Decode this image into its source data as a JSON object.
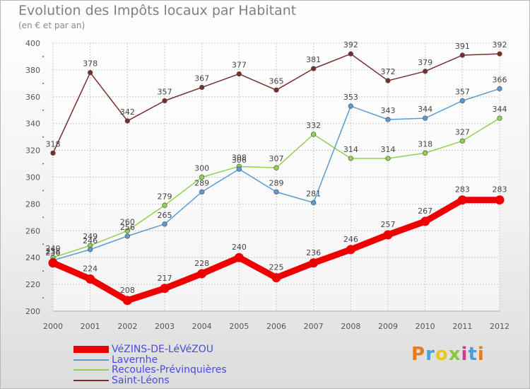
{
  "header": {
    "title": "Evolution des Impôts locaux par Habitant",
    "subtitle": "(en € et par an)"
  },
  "logo": {
    "text": "Proxiti",
    "colors": [
      "#e87b1e",
      "#4aa0d8",
      "#e8c81e",
      "#8cc63f",
      "#d23a8c",
      "#4aa0d8",
      "#e87b1e"
    ]
  },
  "chart_data": {
    "type": "line",
    "x": [
      2000,
      2001,
      2002,
      2003,
      2004,
      2005,
      2006,
      2007,
      2008,
      2009,
      2010,
      2011,
      2012
    ],
    "ylim": [
      200,
      400
    ],
    "yticks": [
      200,
      220,
      240,
      260,
      280,
      300,
      320,
      340,
      360,
      380,
      400
    ],
    "grid": true,
    "legend_position": "bottom-left",
    "series": [
      {
        "name": "VéZINS-DE-LéVéZOU",
        "color": "#ee0000",
        "values": [
          236,
          224,
          208,
          217,
          228,
          240,
          225,
          236,
          246,
          257,
          267,
          283,
          283
        ]
      },
      {
        "name": "Lavernhe",
        "color": "#5b9bd5",
        "values": [
          238,
          246,
          256,
          265,
          289,
          306,
          289,
          281,
          353,
          343,
          344,
          357,
          366
        ]
      },
      {
        "name": "Recoules-Prévinquières",
        "color": "#92d050",
        "values": [
          240,
          249,
          260,
          279,
          300,
          308,
          307,
          332,
          314,
          314,
          318,
          327,
          344
        ]
      },
      {
        "name": "Saint-Léons",
        "color": "#7b2c2c",
        "values": [
          318,
          378,
          342,
          357,
          367,
          377,
          365,
          381,
          392,
          372,
          379,
          391,
          392
        ]
      }
    ]
  }
}
